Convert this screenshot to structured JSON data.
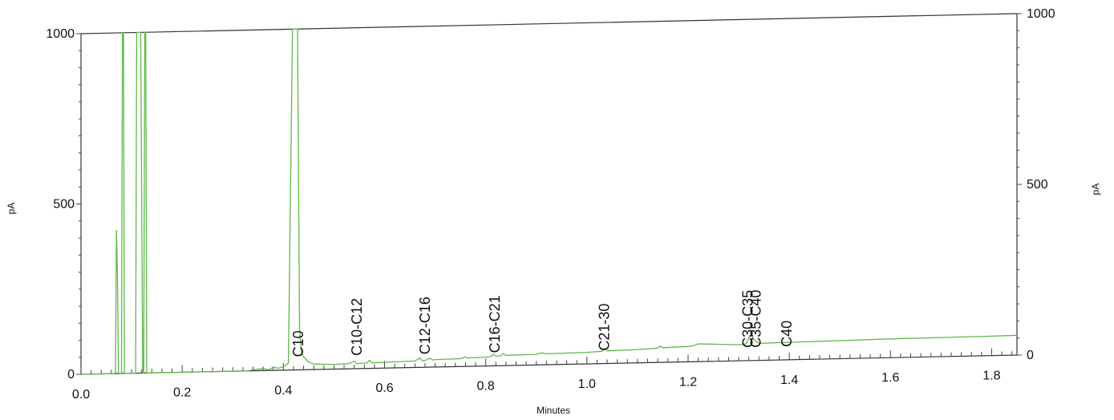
{
  "chart_data": {
    "type": "line",
    "xlabel": "Minutes",
    "ylabel_left": "pA",
    "ylabel_right": "pA",
    "xlim": [
      0.0,
      1.85
    ],
    "ylim": [
      0,
      1000
    ],
    "x_ticks": [
      "0.0",
      "0.2",
      "0.4",
      "0.6",
      "0.8",
      "1.0",
      "1.2",
      "1.4",
      "1.6",
      "1.8"
    ],
    "y_ticks_left": [
      "0",
      "500",
      "1000"
    ],
    "y_ticks_right": [
      "0",
      "500",
      "1000"
    ],
    "line_color": "#5fb84a",
    "series": [
      {
        "x": [
          0.0,
          0.065,
          0.068,
          0.07,
          0.072,
          0.074,
          0.076,
          0.08,
          0.082,
          0.084,
          0.086,
          0.09,
          0.1,
          0.108,
          0.11,
          0.112,
          0.114,
          0.118,
          0.122,
          0.124,
          0.126,
          0.128,
          0.13,
          0.135,
          0.14,
          0.16,
          0.2,
          0.25,
          0.3,
          0.33,
          0.34,
          0.36,
          0.37,
          0.375,
          0.38,
          0.39,
          0.4,
          0.41,
          0.418,
          0.42,
          0.422,
          0.428,
          0.432,
          0.436,
          0.44,
          0.445,
          0.45,
          0.46,
          0.5,
          0.53,
          0.54,
          0.545,
          0.55,
          0.565,
          0.57,
          0.575,
          0.6,
          0.66,
          0.67,
          0.675,
          0.68,
          0.69,
          0.695,
          0.7,
          0.75,
          0.76,
          0.765,
          0.77,
          0.8,
          0.81,
          0.815,
          0.82,
          0.83,
          0.835,
          0.84,
          0.9,
          0.91,
          0.92,
          1.0,
          1.03,
          1.035,
          1.04,
          1.1,
          1.14,
          1.145,
          1.15,
          1.2,
          1.21,
          1.22,
          1.3,
          1.315,
          1.32,
          1.325,
          1.33,
          1.335,
          1.34,
          1.4,
          1.5,
          1.6,
          1.7,
          1.8,
          1.85
        ],
        "y": [
          0,
          0,
          2,
          420,
          300,
          2,
          0,
          0,
          1000,
          1000,
          0,
          0,
          0,
          0,
          1000,
          1000,
          1000,
          1000,
          0,
          0,
          1000,
          1000,
          0,
          0,
          0,
          0,
          0,
          0,
          0,
          0,
          3,
          6,
          2,
          5,
          9,
          6,
          10,
          20,
          1000,
          1000,
          1000,
          1000,
          120,
          50,
          38,
          30,
          22,
          16,
          14,
          15,
          22,
          14,
          15,
          16,
          24,
          16,
          17,
          19,
          27,
          19,
          20,
          26,
          21,
          22,
          23,
          28,
          24,
          25,
          26,
          27,
          34,
          28,
          29,
          35,
          30,
          31,
          35,
          32,
          34,
          36,
          44,
          37,
          39,
          42,
          48,
          43,
          45,
          47,
          52,
          47,
          49,
          68,
          78,
          62,
          55,
          50,
          51,
          53,
          55,
          56,
          57,
          58
        ]
      }
    ],
    "annotations": [
      {
        "label": "C10",
        "x": 0.43
      },
      {
        "label": "C10-C12",
        "x": 0.545
      },
      {
        "label": "C12-C16",
        "x": 0.68
      },
      {
        "label": "C16-C21",
        "x": 0.818
      },
      {
        "label": "C21-30",
        "x": 1.034
      },
      {
        "label": "C30-C35",
        "x": 1.318
      },
      {
        "label": "C35-C40",
        "x": 1.334
      },
      {
        "label": "C40",
        "x": 1.395
      }
    ]
  }
}
